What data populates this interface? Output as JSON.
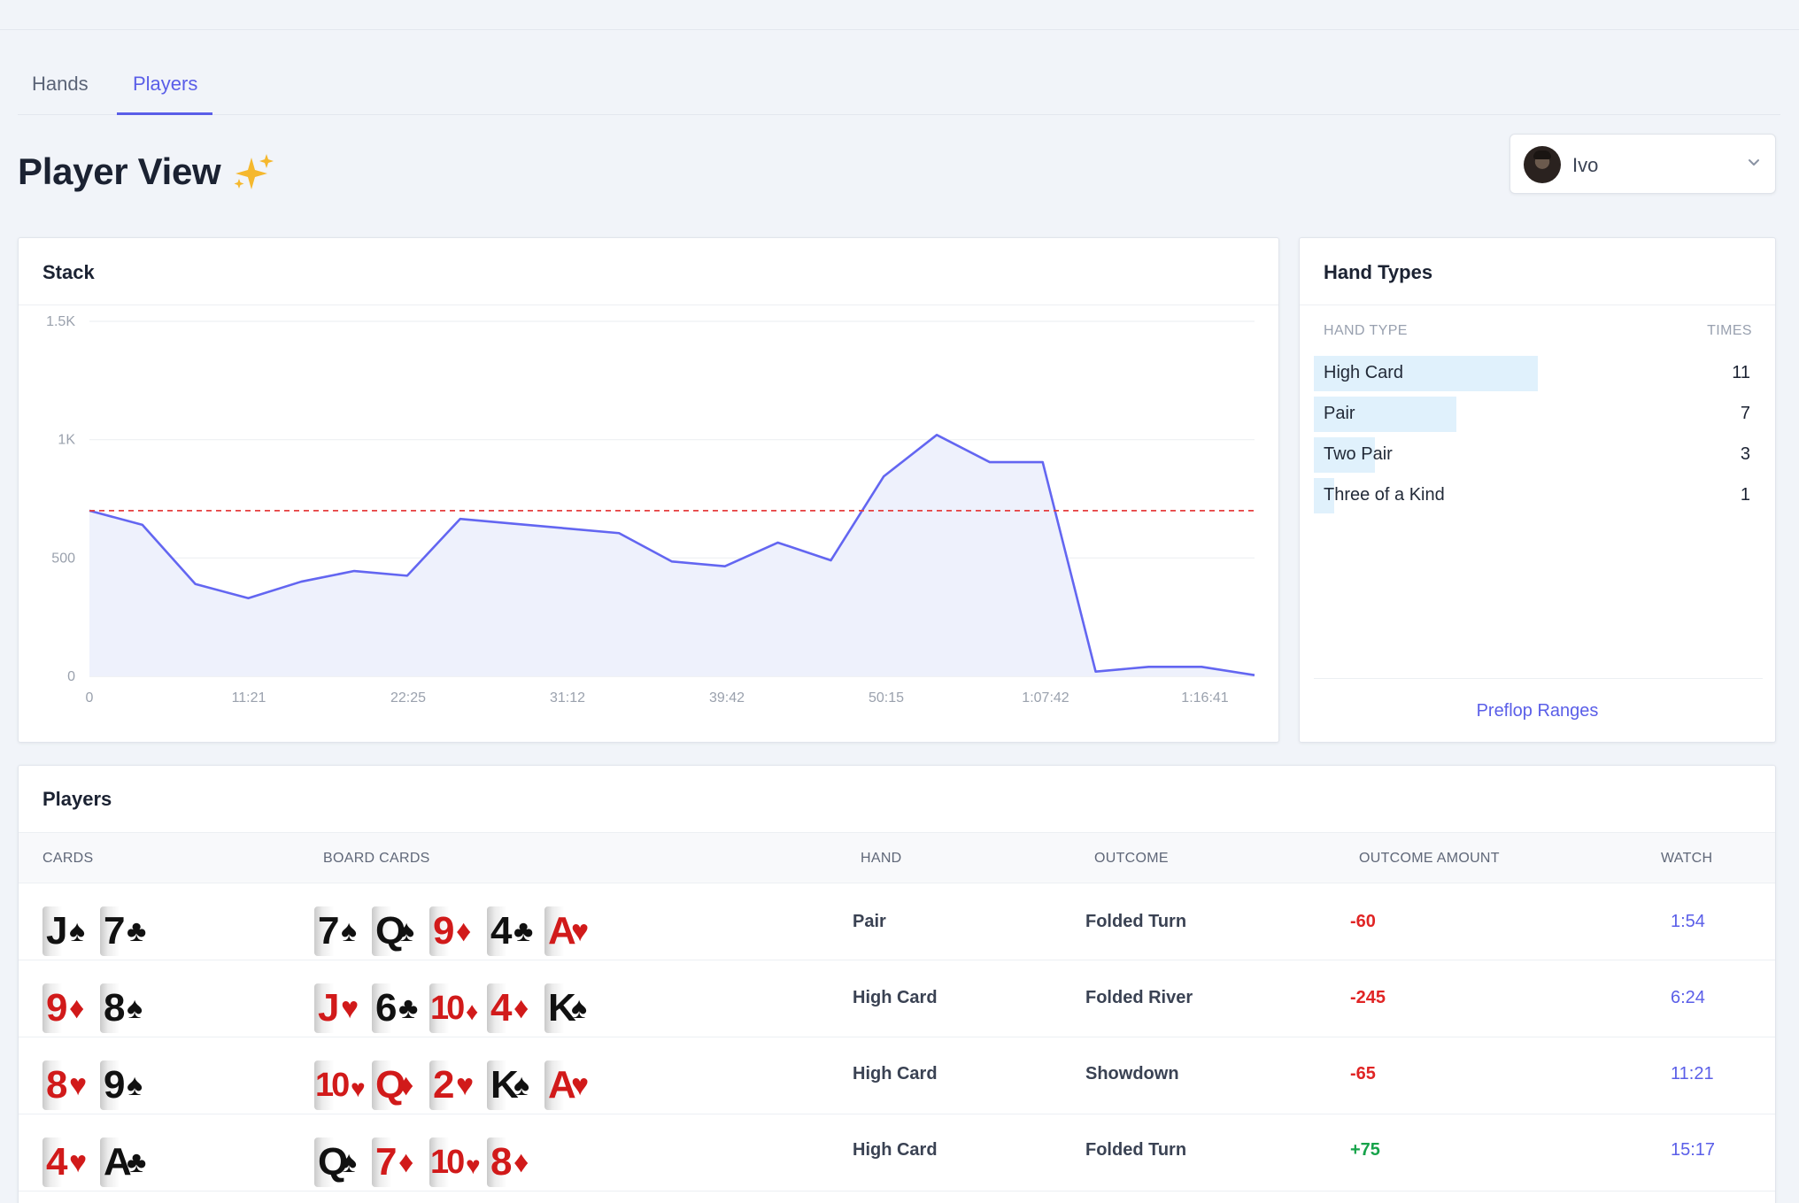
{
  "tabs": [
    {
      "label": "Hands",
      "active": false
    },
    {
      "label": "Players",
      "active": true
    }
  ],
  "page_title": "Player View",
  "title_icon": "sparkles-icon",
  "player_select": {
    "value": "Ivo",
    "avatar": "user-avatar",
    "icon": "chevron-down-icon"
  },
  "stack_card": {
    "title": "Stack"
  },
  "chart_data": {
    "type": "area",
    "title": "Stack",
    "x_tick_labels": [
      "0",
      "11:21",
      "22:25",
      "31:12",
      "39:42",
      "50:15",
      "1:07:42",
      "1:16:41"
    ],
    "y_tick_labels": [
      "1.5K",
      "1K",
      "500",
      "0"
    ],
    "ylim": [
      0,
      1500
    ],
    "y_ticks": [
      0,
      500,
      1000,
      1500
    ],
    "series": [
      {
        "values": [
          700,
          640,
          390,
          330,
          400,
          445,
          425,
          665,
          645,
          625,
          605,
          485,
          465,
          565,
          490,
          845,
          1020,
          905,
          905,
          20,
          40,
          40,
          5
        ]
      }
    ],
    "reference_line": {
      "value": 700,
      "style": "dashed",
      "color": "#e53e3e"
    },
    "line_color": "#6366f1",
    "fill_color": "#eef1fc",
    "grid": true,
    "legend": "none"
  },
  "hand_types": {
    "title": "Hand Types",
    "col_hand_type": "HAND TYPE",
    "col_times": "TIMES",
    "max": 11,
    "rows": [
      {
        "label": "High Card",
        "times": "11",
        "count": 11
      },
      {
        "label": "Pair",
        "times": "7",
        "count": 7
      },
      {
        "label": "Two Pair",
        "times": "3",
        "count": 3
      },
      {
        "label": "Three of a Kind",
        "times": "1",
        "count": 1
      }
    ],
    "link": "Preflop Ranges"
  },
  "players": {
    "title": "Players",
    "columns": [
      "CARDS",
      "BOARD CARDS",
      "HAND",
      "OUTCOME",
      "OUTCOME AMOUNT",
      "WATCH"
    ],
    "rows": [
      {
        "cards": [
          "J♠",
          "7♣"
        ],
        "board": [
          "7♠",
          "Q♠",
          "9♦",
          "4♣",
          "A♥"
        ],
        "hand": "Pair",
        "outcome": "Folded Turn",
        "amount": "-60",
        "watch": "1:54"
      },
      {
        "cards": [
          "9♦",
          "8♠"
        ],
        "board": [
          "J♥",
          "6♣",
          "10♦",
          "4♦",
          "K♠"
        ],
        "hand": "High Card",
        "outcome": "Folded River",
        "amount": "-245",
        "watch": "6:24"
      },
      {
        "cards": [
          "8♥",
          "9♠"
        ],
        "board": [
          "10♥",
          "Q♦",
          "2♥",
          "K♠",
          "A♥"
        ],
        "hand": "High Card",
        "outcome": "Showdown",
        "amount": "-65",
        "watch": "11:21"
      },
      {
        "cards": [
          "4♥",
          "A♣"
        ],
        "board": [
          "Q♠",
          "7♦",
          "10♥",
          "8♦"
        ],
        "hand": "High Card",
        "outcome": "Folded Turn",
        "amount": "+75",
        "watch": "15:17"
      }
    ]
  },
  "colors": {
    "accent": "#5a5ee8",
    "negative": "#e02424",
    "positive": "#16a34a",
    "hand_bar": "#e0f1fc"
  }
}
